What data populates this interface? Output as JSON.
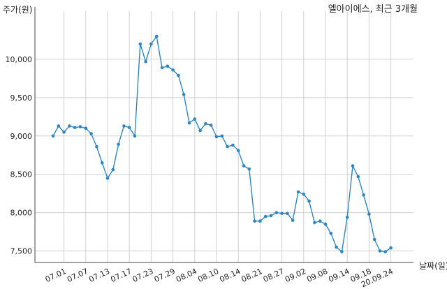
{
  "chart_data": {
    "type": "line",
    "title": "엘아이에스, 최근 3개월",
    "ylabel": "주가(원)",
    "xlabel": "날짜(일)",
    "ylim": [
      7350,
      10500
    ],
    "yticks": [
      7500,
      8000,
      8500,
      9000,
      9500,
      10000
    ],
    "ytick_labels": [
      "7,500",
      "8,000",
      "8,500",
      "9,000",
      "9,500",
      "10,000"
    ],
    "xtick_labels": [
      "07.01",
      "07.07",
      "07.13",
      "07.17",
      "07.23",
      "07.29",
      "08.04",
      "08.10",
      "08.14",
      "08.21",
      "08.27",
      "09.02",
      "09.08",
      "09.14",
      "09.18",
      "20.09.24"
    ],
    "xtick_index": [
      2,
      6,
      10,
      14,
      18,
      22,
      26,
      30,
      34,
      38,
      42,
      46,
      50,
      54,
      58,
      62
    ],
    "grid": true,
    "line_color": "#2e86c1",
    "series": [
      {
        "values": [
          9000,
          9130,
          9050,
          9130,
          9110,
          9120,
          9100,
          9030,
          8860,
          8650,
          8450,
          8560,
          8890,
          9130,
          9110,
          9000,
          10200,
          9970,
          10200,
          10300,
          9890,
          9910,
          9860,
          9790,
          9540,
          9170,
          9220,
          9070,
          9160,
          9140,
          8990,
          9000,
          8860,
          8880,
          8810,
          8610,
          8570,
          7890,
          7890,
          7950,
          7960,
          8000,
          7990,
          7990,
          7900,
          8270,
          8240,
          8150,
          7870,
          7890,
          7850,
          7730,
          7550,
          7490,
          7940,
          8610,
          8470,
          8230,
          7980,
          7650,
          7500,
          7490,
          7540
        ]
      }
    ]
  }
}
